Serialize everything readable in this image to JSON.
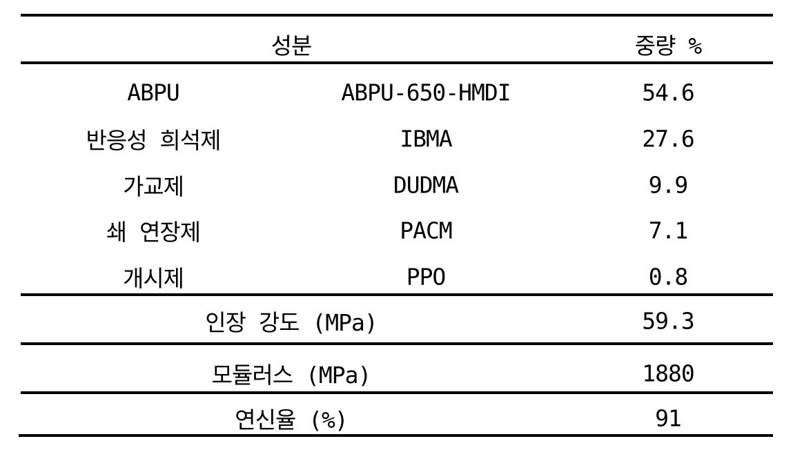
{
  "header": {
    "component": "성분",
    "weight": "중량 %"
  },
  "components": [
    {
      "category": "ABPU",
      "material": "ABPU-650-HMDI",
      "weight": "54.6"
    },
    {
      "category": "반응성 희석제",
      "material": "IBMA",
      "weight": "27.6"
    },
    {
      "category": "가교제",
      "material": "DUDMA",
      "weight": "9.9"
    },
    {
      "category": "쇄 연장제",
      "material": "PACM",
      "weight": "7.1"
    },
    {
      "category": "개시제",
      "material": "PPO",
      "weight": "0.8"
    }
  ],
  "properties": [
    {
      "label": "인장 강도 (MPa)",
      "value": "59.3"
    },
    {
      "label": "모듈러스 (MPa)",
      "value": "1880"
    },
    {
      "label": "연신율 (%)",
      "value": "91"
    }
  ]
}
